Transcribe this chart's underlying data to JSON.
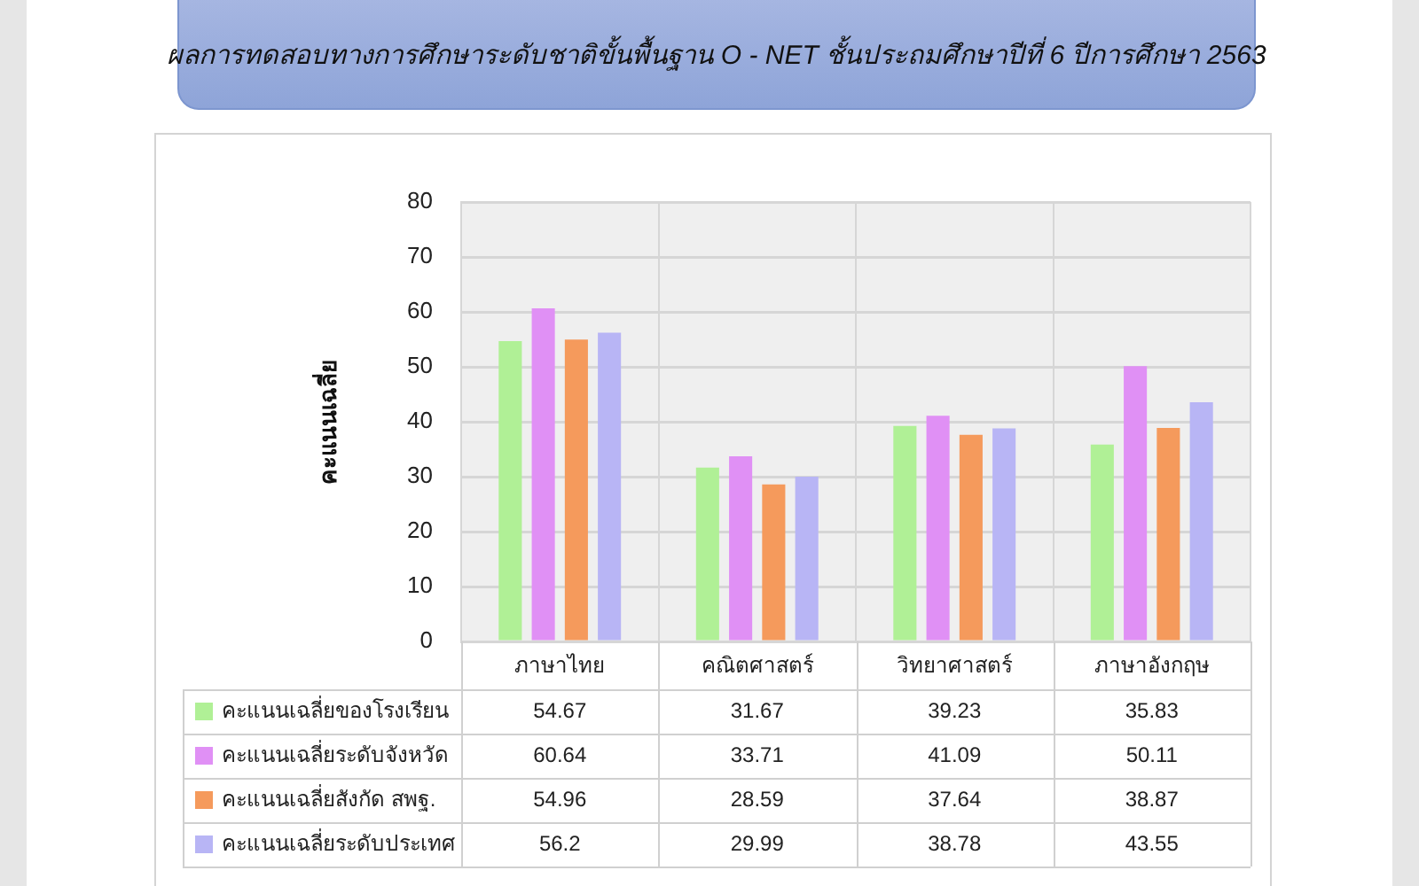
{
  "chart_data": {
    "type": "bar",
    "title": "ผลการทดสอบทางการศึกษาระดับชาติขั้นพื้นฐาน O - NET ชั้นประถมศึกษาปีที่ 6 ปีการศึกษา 2563",
    "ylabel": "คะแนนเฉลี่ย",
    "categories": [
      "ภาษาไทย",
      "คณิตศาสตร์",
      "วิทยาศาสตร์",
      "ภาษาอังกฤษ"
    ],
    "series": [
      {
        "name": "คะแนนเฉลี่ยของโรงเรียน",
        "color": "#b0f096",
        "values": [
          54.67,
          31.67,
          39.23,
          35.83
        ]
      },
      {
        "name": "คะแนนเฉลี่ยระดับจังหวัด",
        "color": "#e090f5",
        "values": [
          60.64,
          33.71,
          41.09,
          50.11
        ]
      },
      {
        "name": "คะแนนเฉลี่ยสังกัด สพฐ.",
        "color": "#f59a5c",
        "values": [
          54.96,
          28.59,
          37.64,
          38.87
        ]
      },
      {
        "name": "คะแนนเฉลี่ยระดับประเทศ",
        "color": "#b8b5f5",
        "values": [
          56.2,
          29.99,
          38.78,
          43.55
        ]
      }
    ],
    "ylim": [
      0,
      80
    ],
    "yticks": [
      0,
      10,
      20,
      30,
      40,
      50,
      60,
      70,
      80
    ],
    "grid": true,
    "legend": "bottom left",
    "data_labels": true
  }
}
